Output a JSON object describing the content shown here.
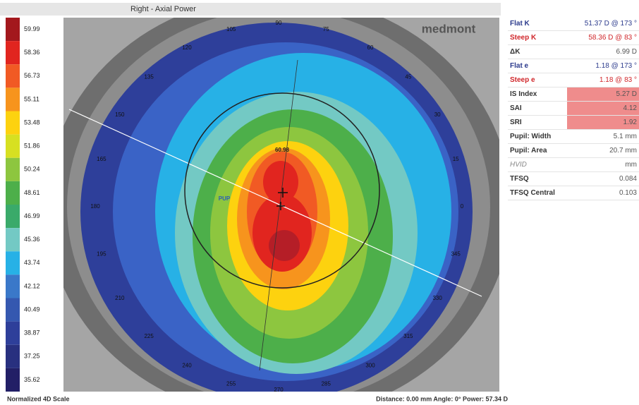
{
  "header": {
    "title": "Right - Axial Power"
  },
  "scale": {
    "entries": [
      {
        "label": "59.99",
        "color": "#a3181d"
      },
      {
        "label": "58.36",
        "color": "#e1251f"
      },
      {
        "label": "56.73",
        "color": "#f15a24"
      },
      {
        "label": "55.11",
        "color": "#f7941d"
      },
      {
        "label": "53.48",
        "color": "#fdd20f"
      },
      {
        "label": "51.86",
        "color": "#d7e021"
      },
      {
        "label": "50.24",
        "color": "#8dc63f"
      },
      {
        "label": "48.61",
        "color": "#4daf4a"
      },
      {
        "label": "46.99",
        "color": "#3aaa6a"
      },
      {
        "label": "45.36",
        "color": "#73c9c4"
      },
      {
        "label": "43.74",
        "color": "#27b1e6"
      },
      {
        "label": "42.12",
        "color": "#3a78c9"
      },
      {
        "label": "40.49",
        "color": "#3558b0"
      },
      {
        "label": "38.87",
        "color": "#2e3f9a"
      },
      {
        "label": "37.25",
        "color": "#28307f"
      },
      {
        "label": "35.62",
        "color": "#221f66"
      }
    ],
    "footer": "Normalized 4D Scale"
  },
  "map": {
    "logo": "medmont",
    "peak_label": "60.98",
    "pupil_label": "PUP",
    "angle_labels": [
      "0",
      "15",
      "30",
      "45",
      "60",
      "75",
      "90",
      "105",
      "120",
      "135",
      "150",
      "165",
      "180",
      "195",
      "210",
      "225",
      "240",
      "255",
      "270",
      "285",
      "300",
      "315",
      "330",
      "345"
    ],
    "status": "Distance: 0.00 mm Angle: 0° Power:  57.34 D"
  },
  "table": {
    "rows": [
      [
        "Flat K",
        "51.37 D @ 173 °"
      ],
      [
        "Steep K",
        "58.36 D @  83 °"
      ],
      [
        "ΔK",
        "6.99 D"
      ],
      [
        "Flat e",
        "1.18 @ 173 °"
      ],
      [
        "Steep e",
        "1.18 @  83 °"
      ],
      [
        "IS Index",
        "5.27 D"
      ],
      [
        "SAI",
        "4.12"
      ],
      [
        "SRI",
        "1.92"
      ],
      [
        "Pupil: Width",
        "5.1 mm"
      ],
      [
        "Pupil: Area",
        "20.7 mm"
      ],
      [
        "HVID",
        "mm"
      ],
      [
        "TFSQ",
        "0.084"
      ],
      [
        "TFSQ Central",
        "0.103"
      ]
    ]
  }
}
